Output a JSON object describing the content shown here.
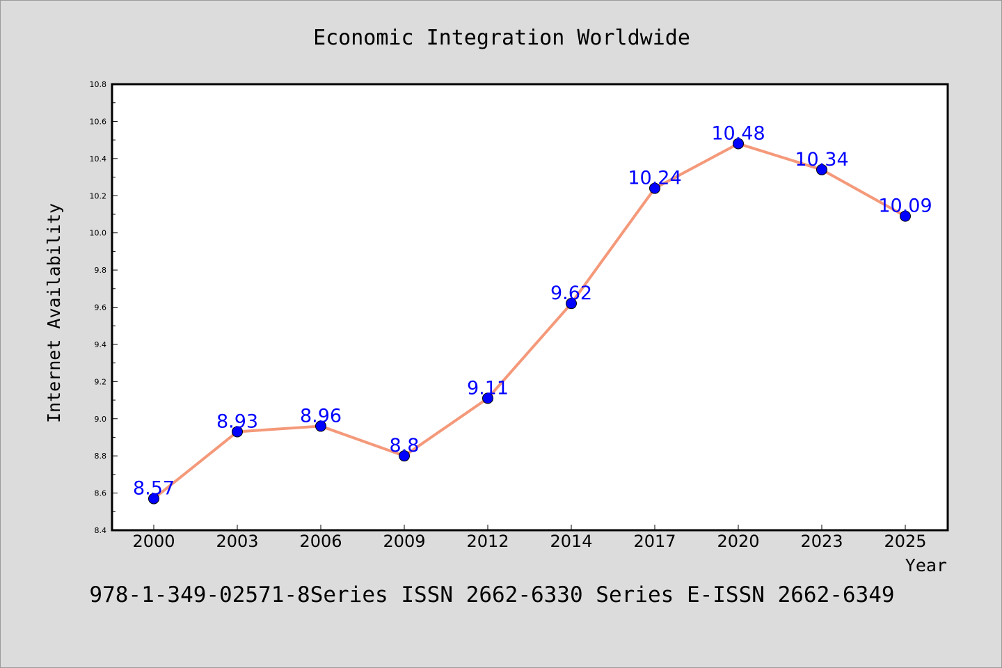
{
  "chart_data": {
    "type": "line",
    "title": "Economic Integration Worldwide",
    "xlabel": "Year",
    "ylabel": "Internet Availability",
    "categories": [
      "2000",
      "2003",
      "2006",
      "2009",
      "2012",
      "2014",
      "2017",
      "2020",
      "2023",
      "2025"
    ],
    "series": [
      {
        "values": [
          8.57,
          8.93,
          8.96,
          8.8,
          9.11,
          9.62,
          10.24,
          10.48,
          10.34,
          10.09
        ],
        "data_labels": [
          "8.57",
          "8.93",
          "8.96",
          "8.8",
          "9.11",
          "9.62",
          "10.24",
          "10.48",
          "10.34",
          "10.09"
        ],
        "line_color": "#f4997a",
        "marker_color": "#0000ff",
        "label_color": "#0000ff"
      }
    ],
    "ylim": [
      8.4,
      10.8
    ],
    "yticks": [
      8.4,
      8.6,
      8.8,
      9.0,
      9.2,
      9.4,
      9.6,
      9.8,
      10.0,
      10.2,
      10.4,
      10.6,
      10.8
    ],
    "ytick_labels": [
      "8.4",
      "8.6",
      "8.8",
      "9.0",
      "9.2",
      "9.4",
      "9.6",
      "9.8",
      "10.0",
      "10.2",
      "10.4",
      "10.6",
      "10.8"
    ],
    "grid": false,
    "legend": "none"
  },
  "footer_text": "978-1-349-02571-8Series ISSN 2662-6330 Series E-ISSN 2662-6349",
  "colors": {
    "background": "#dcdcdc",
    "plot_background": "#ffffff",
    "axis": "#000000",
    "text": "#000000"
  }
}
